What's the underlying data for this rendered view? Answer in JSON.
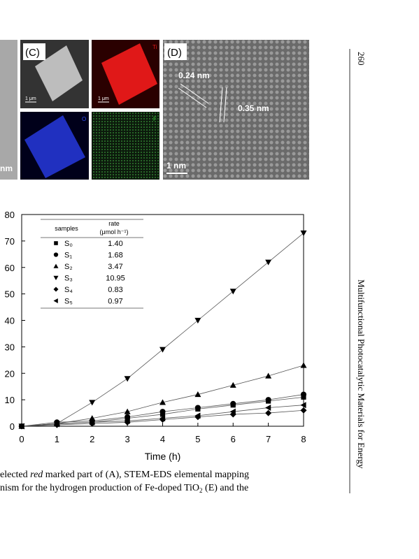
{
  "figure": {
    "left_panel_scale": "nm",
    "panel_c": {
      "label": "(C)",
      "scale_1": "1 μm",
      "scale_2": "1 μm",
      "map_ti": "Ti",
      "map_o": "O",
      "map_f": "F"
    },
    "panel_d": {
      "label": "(D)",
      "spacing_1": "0.24 nm",
      "spacing_2": "0.35 nm",
      "scale": "1 nm"
    }
  },
  "chart_data": {
    "type": "line",
    "x_label": "Time (h)",
    "x": [
      0,
      1,
      2,
      3,
      4,
      5,
      6,
      7,
      8
    ],
    "xlim": [
      0,
      8
    ],
    "xticks": [
      0,
      1,
      2,
      3,
      4,
      5,
      6,
      7,
      8
    ],
    "ylim": [
      0,
      80
    ],
    "yticks": [
      0,
      10,
      20,
      30,
      40,
      50,
      60,
      70,
      80
    ],
    "color": "#000000",
    "legend": {
      "header_name": "samples",
      "header_rate_1": "rate",
      "header_rate_2": "(μmol h⁻¹)"
    },
    "series": [
      {
        "name": "S₀",
        "rate": "1.40",
        "marker": "square",
        "values": [
          0,
          1,
          1.5,
          3,
          4.5,
          6.5,
          8,
          9.5,
          11
        ]
      },
      {
        "name": "S₁",
        "rate": "1.68",
        "marker": "circle",
        "values": [
          0,
          1.5,
          2,
          3.5,
          5.5,
          7,
          8.5,
          10,
          12
        ]
      },
      {
        "name": "S₂",
        "rate": "3.47",
        "marker": "triangle-up",
        "values": [
          0,
          1,
          3,
          5.5,
          9,
          12,
          15.5,
          19,
          23
        ]
      },
      {
        "name": "S₃",
        "rate": "10.95",
        "marker": "triangle-down",
        "values": [
          0,
          1,
          9,
          18,
          29,
          40,
          51,
          62,
          73
        ]
      },
      {
        "name": "S₄",
        "rate": "0.83",
        "marker": "diamond",
        "values": [
          0,
          0.5,
          1,
          1.5,
          2.5,
          3.5,
          4.5,
          5,
          6
        ]
      },
      {
        "name": "S₅",
        "rate": "0.97",
        "marker": "triangle-left",
        "values": [
          0,
          0.8,
          1.5,
          2,
          3,
          4,
          5.5,
          7,
          8
        ]
      }
    ]
  },
  "caption": {
    "line_1": [
      "elected ",
      "red",
      " marked part of (A), STEM-EDS elemental mapping"
    ],
    "line_2": [
      "nism for the hydrogen production of Fe-doped TiO",
      "2",
      " (E) and the"
    ]
  },
  "page_number": "260",
  "running_title": "Multifunctional Photocatalytic Materials for Energy"
}
